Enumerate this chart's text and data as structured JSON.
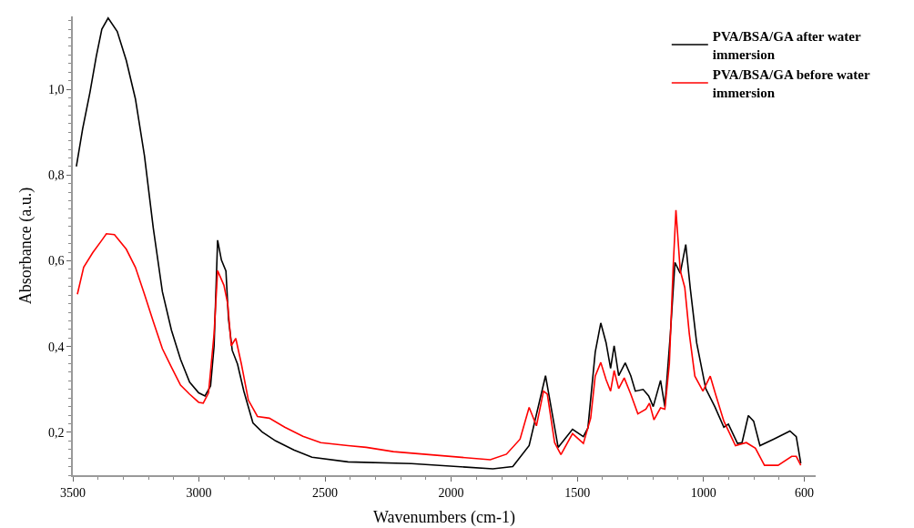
{
  "chart_data": {
    "type": "line",
    "xlabel": "Wavenumbers (cm-1)",
    "ylabel": "Absorbance (a.u.)",
    "xlim": [
      3500,
      555
    ],
    "ylim": [
      0.1,
      1.17
    ],
    "xticks": [
      3500,
      3000,
      2500,
      2000,
      1500,
      1000,
      600
    ],
    "yticks": [
      {
        "value": 0.2,
        "label": "0,2"
      },
      {
        "value": 0.4,
        "label": "0,4"
      },
      {
        "value": 0.6,
        "label": "0,6"
      },
      {
        "value": 0.8,
        "label": "0,8"
      },
      {
        "value": 1.0,
        "label": "1,0"
      }
    ],
    "grid": false,
    "legend": "top right",
    "marker": "none",
    "line_style": "solid",
    "series": [
      {
        "name": "PVA/BSA/GA after water immersion",
        "color": "#000000",
        "x": [
          3486,
          3461,
          3432,
          3407,
          3385,
          3360,
          3324,
          3288,
          3252,
          3216,
          3181,
          3145,
          3109,
          3073,
          3037,
          3001,
          2976,
          2954,
          2940,
          2926,
          2911,
          2893,
          2883,
          2868,
          2847,
          2822,
          2786,
          2750,
          2696,
          2624,
          2552,
          2409,
          2158,
          1835,
          1756,
          1691,
          1626,
          1576,
          1519,
          1476,
          1458,
          1429,
          1407,
          1386,
          1368,
          1354,
          1336,
          1310,
          1288,
          1270,
          1239,
          1217,
          1199,
          1170,
          1153,
          1131,
          1113,
          1092,
          1070,
          1052,
          1027,
          991,
          955,
          919,
          901,
          865,
          847,
          822,
          801,
          776,
          722,
          657,
          632,
          614
        ],
        "values": [
          0.82,
          0.908,
          0.993,
          1.077,
          1.14,
          1.166,
          1.135,
          1.067,
          0.978,
          0.845,
          0.676,
          0.528,
          0.438,
          0.37,
          0.317,
          0.292,
          0.285,
          0.308,
          0.401,
          0.648,
          0.602,
          0.576,
          0.465,
          0.391,
          0.359,
          0.296,
          0.222,
          0.201,
          0.18,
          0.159,
          0.142,
          0.131,
          0.127,
          0.115,
          0.12,
          0.169,
          0.332,
          0.165,
          0.207,
          0.19,
          0.21,
          0.387,
          0.455,
          0.409,
          0.349,
          0.402,
          0.332,
          0.362,
          0.332,
          0.296,
          0.3,
          0.285,
          0.26,
          0.321,
          0.26,
          0.43,
          0.596,
          0.571,
          0.638,
          0.535,
          0.409,
          0.302,
          0.26,
          0.212,
          0.219,
          0.174,
          0.176,
          0.239,
          0.226,
          0.169,
          0.184,
          0.203,
          0.19,
          0.128
        ]
      },
      {
        "name": "PVA/BSA/GA before water immersion",
        "color": "#ff0000",
        "x": [
          3482,
          3457,
          3421,
          3385,
          3367,
          3335,
          3288,
          3252,
          3216,
          3181,
          3145,
          3109,
          3073,
          3037,
          3001,
          2983,
          2962,
          2940,
          2926,
          2901,
          2886,
          2872,
          2854,
          2832,
          2804,
          2768,
          2721,
          2660,
          2588,
          2517,
          2409,
          2337,
          2229,
          1845,
          1781,
          1727,
          1691,
          1662,
          1634,
          1619,
          1590,
          1565,
          1519,
          1476,
          1447,
          1429,
          1407,
          1386,
          1368,
          1354,
          1336,
          1314,
          1288,
          1260,
          1228,
          1214,
          1196,
          1170,
          1153,
          1135,
          1120,
          1109,
          1092,
          1074,
          1056,
          1034,
          1002,
          973,
          952,
          919,
          873,
          830,
          794,
          758,
          704,
          650,
          632,
          614
        ],
        "values": [
          0.522,
          0.585,
          0.619,
          0.648,
          0.663,
          0.661,
          0.627,
          0.585,
          0.522,
          0.458,
          0.395,
          0.352,
          0.31,
          0.289,
          0.27,
          0.268,
          0.292,
          0.43,
          0.577,
          0.543,
          0.5,
          0.402,
          0.419,
          0.36,
          0.275,
          0.237,
          0.233,
          0.212,
          0.191,
          0.176,
          0.169,
          0.165,
          0.155,
          0.136,
          0.149,
          0.184,
          0.258,
          0.215,
          0.296,
          0.289,
          0.176,
          0.148,
          0.197,
          0.174,
          0.233,
          0.331,
          0.363,
          0.323,
          0.296,
          0.344,
          0.302,
          0.327,
          0.289,
          0.243,
          0.254,
          0.268,
          0.229,
          0.257,
          0.254,
          0.36,
          0.585,
          0.718,
          0.577,
          0.538,
          0.43,
          0.331,
          0.296,
          0.331,
          0.289,
          0.226,
          0.169,
          0.176,
          0.163,
          0.123,
          0.123,
          0.144,
          0.144,
          0.123
        ]
      }
    ]
  }
}
